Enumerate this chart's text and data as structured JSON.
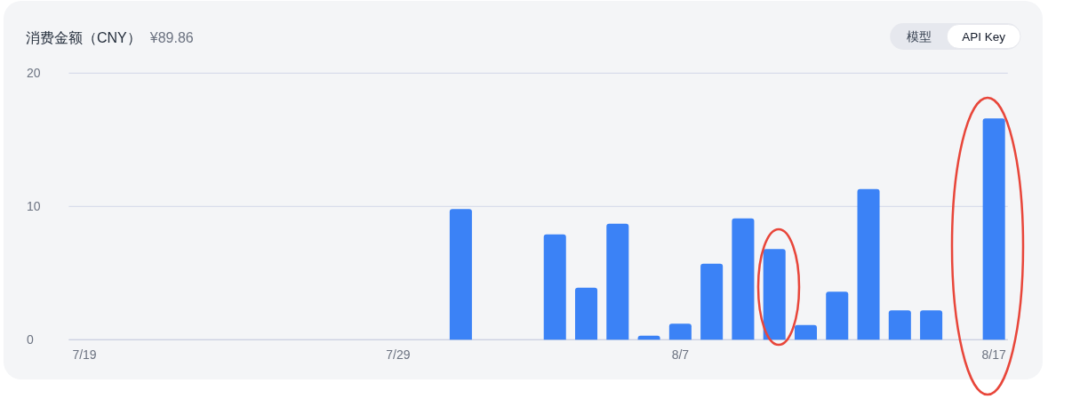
{
  "chart_data": {
    "type": "bar",
    "title": "消费金额（CNY）",
    "subtitle": "¥89.86",
    "categories": [
      "7/19",
      null,
      null,
      null,
      null,
      null,
      null,
      null,
      null,
      null,
      "7/29",
      null,
      null,
      null,
      null,
      null,
      null,
      null,
      null,
      "8/7",
      null,
      null,
      null,
      null,
      null,
      null,
      null,
      null,
      null,
      "8/17"
    ],
    "values": [
      0,
      0,
      0,
      0,
      0,
      0,
      0,
      0,
      0,
      0,
      0,
      0,
      9.8,
      0,
      0,
      7.9,
      3.9,
      8.7,
      0.3,
      1.2,
      5.7,
      9.1,
      6.8,
      1.1,
      3.6,
      11.3,
      2.2,
      2.2,
      0,
      16.6
    ],
    "color": "#3b82f6",
    "ylim": [
      0,
      20
    ],
    "yticks": [
      0,
      10,
      20
    ],
    "grid": "y",
    "annotations": [
      "模型",
      "API Key"
    ]
  }
}
